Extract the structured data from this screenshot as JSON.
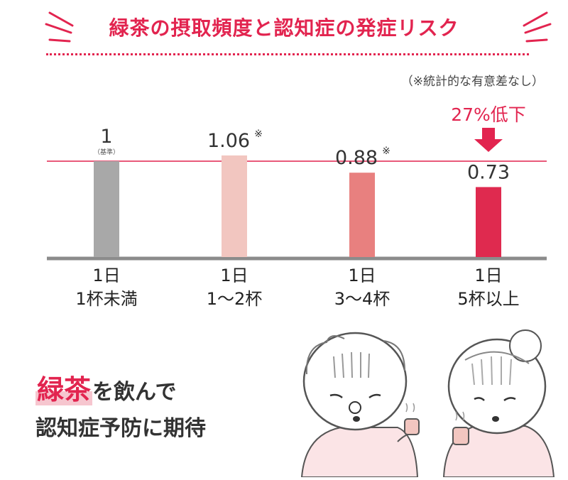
{
  "title": "緑茶の摂取頻度と認知症の発症リスク",
  "note": "（※統計的な有意差なし）",
  "highlight_text": "27%低下",
  "baseline_tag": "（基準）",
  "promo": {
    "line1_highlight": "緑茶",
    "line1_rest": "を飲んで",
    "line2": "認知症予防に期待"
  },
  "colors": {
    "accent": "#e2244f",
    "bars": [
      "#a8a8a8",
      "#f2c6c0",
      "#e8807f",
      "#df2a4f"
    ]
  },
  "chart_data": {
    "type": "bar",
    "title": "緑茶の摂取頻度と認知症の発症リスク",
    "categories": [
      "1日\n1杯未満",
      "1日\n1～2杯",
      "1日\n3～4杯",
      "1日\n5杯以上"
    ],
    "values": [
      1,
      1.06,
      0.88,
      0.73
    ],
    "value_labels": [
      "1",
      "1.06",
      "0.88",
      "0.73"
    ],
    "significance_mark": [
      false,
      true,
      true,
      false
    ],
    "mark_symbol": "※",
    "reference_line": 1,
    "ylim": [
      0,
      1.2
    ],
    "grid": false,
    "xlabel": "",
    "ylabel": ""
  }
}
